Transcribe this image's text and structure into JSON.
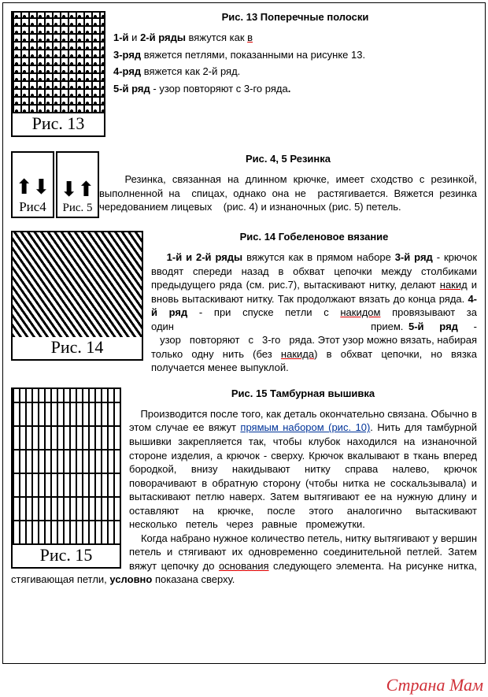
{
  "sect13": {
    "heading": "Рис. 13 Поперечные полоски",
    "lines": [
      {
        "html": "<b>1-й</b> и <b>2-й ряды</b> вяжутся как <span class='underline-red'>в</span>"
      },
      {
        "html": "<b>3-ряд</b> вяжется петлями, показанными на рисунке 13."
      },
      {
        "html": "<b>4-ряд</b> вяжется как 2-й ряд."
      },
      {
        "html": "<b>5-й ряд</b> - узор повторяют с 3-го ряда<b>.</b>"
      }
    ],
    "caption": "Рис. 13"
  },
  "sect45": {
    "heading": "Рис. 4, 5  Резинка",
    "text": {
      "html": "&nbsp;&nbsp;&nbsp;&nbsp;Резинка, связанная на длинном крючке, имеет сходство с резинкой, выполненной на&nbsp;&nbsp;спицах, однако она не&nbsp;&nbsp;растяги­вается. Вяжется резинка чередованием лицевых&nbsp;&nbsp;&nbsp;&nbsp;(рис. 4) и изнаночных (рис. 5) петель."
    },
    "cap4": "Рис4",
    "cap5": "Рис. 5"
  },
  "sect14": {
    "heading": "Рис. 14  Гобеленовое вязание",
    "text": {
      "html": "&nbsp;&nbsp;&nbsp;&nbsp;<b>1-й и 2-й ряды</b> вяжутся как в прямом наборе <b>3-й ряд</b> - крючок вводят спереди назад в обхват це­почки между столбиками предыдущего ряда (см. рис.7), вытаскивают нитку, делают <span class='underline-red'>накид</span> и вновь вытаскивают нитку. Так продолжают вязать до конца ряда. <b>4-й ряд</b> - при спуске петли с <span class='underline-red'>накидом</span> провязывают за один&nbsp;&nbsp;&nbsp;&nbsp;&nbsp;&nbsp;&nbsp;&nbsp;&nbsp;&nbsp;&nbsp;&nbsp;&nbsp;&nbsp;&nbsp;&nbsp;&nbsp;&nbsp;&nbsp;&nbsp;&nbsp;&nbsp;&nbsp;&nbsp;&nbsp;&nbsp;&nbsp;&nbsp;&nbsp;&nbsp;&nbsp;&nbsp;&nbsp;&nbsp;&nbsp;&nbsp;&nbsp;&nbsp;прием. <b>5-й&nbsp;&nbsp;&nbsp;ряд</b>&nbsp;&nbsp;&nbsp;-&nbsp;&nbsp;&nbsp;узор&nbsp;&nbsp;&nbsp;повторяют&nbsp;&nbsp;&nbsp;с&nbsp;&nbsp;&nbsp;3-го&nbsp;&nbsp;&nbsp;ряда. Этот узор можно вязать, набирая только одну нить (без <span class='underline-red'>накида</span>) в обхват це­почки, но вязка получается менее выпуклой."
    },
    "caption": "Рис. 14"
  },
  "sect15": {
    "heading": "Рис. 15 Тамбурная вышивка",
    "text": {
      "html": "&nbsp;&nbsp;&nbsp;&nbsp;Производится после того, как деталь окончательно свя­зана. Обычно в этом случае ее вяжут <span class='link-blue'>прямым набором (рис. 10)</span>. Нить для тамбурной вышивки закрепляется так, чтобы клубок находился на изнаночной стороне изделия, а крючок - сверху. Крючок вкалывают в ткань вперед бородкой, внизу накидывают нитку справа налево, крючок поворачивают в обратную сторону (чтобы нитка не соскальзывала) и вытас­кивают петлю наверх. Затем вытягивают ее на нужную длину и оставляют на крючке, после этого аналогично вытаскивают несколько&nbsp;&nbsp;&nbsp;петель&nbsp;&nbsp;&nbsp;через&nbsp;&nbsp;&nbsp;равные&nbsp;&nbsp;&nbsp;промежутки.<br>&nbsp;&nbsp;&nbsp;&nbsp;Когда набрано нужное количество петель, нитку вытяги­вают у вершин петель и стягивают их одновременно соеди­нительной петлей. Затем вяжут цепочку до <span class='underline-red'>основания</span> сле­дующего элемента. На рисунке нитка, стягивающая петли, <b>условно</b> показана сверху."
    },
    "caption": "Рис. 15"
  },
  "watermark": "Страна Мам"
}
